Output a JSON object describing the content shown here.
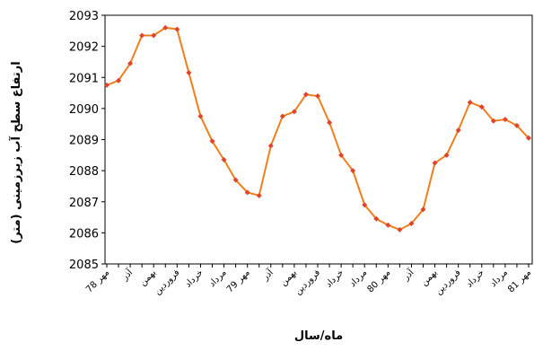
{
  "chart_data": {
    "type": "line",
    "x_label": "ماه/سال",
    "y_label": "ارتفاع سطح آب زیرزمینی (متر)",
    "categories": [
      "مهر 78",
      null,
      "آذر",
      null,
      "بهمن",
      null,
      "فروردین",
      null,
      "خرداد",
      null,
      "مرداد",
      null,
      "مهر 79",
      null,
      "آذر",
      null,
      "بهمن",
      null,
      "فروردین",
      null,
      "خرداد",
      null,
      "مرداد",
      null,
      "مهر 80",
      null,
      "آذر",
      null,
      "بهمن",
      null,
      "فروردین",
      null,
      "خرداد",
      null,
      "مرداد",
      null,
      "مهر 81"
    ],
    "series": [
      {
        "color": "#f07f1e",
        "marker_color": "#e0442a",
        "values": [
          2090.75,
          2090.9,
          2091.45,
          2092.35,
          2092.35,
          2092.6,
          2092.55,
          2091.15,
          2089.75,
          2088.95,
          2088.35,
          2087.7,
          2087.3,
          2087.2,
          2088.8,
          2089.75,
          2089.9,
          2090.45,
          2090.4,
          2089.55,
          2088.5,
          2088.0,
          2086.9,
          2086.45,
          2086.25,
          2086.1,
          2086.3,
          2086.75,
          2088.25,
          2088.5,
          2089.3,
          2090.2,
          2090.05,
          2089.6,
          2089.65,
          2089.45,
          2089.05
        ]
      }
    ],
    "ylim": [
      2085,
      2093
    ],
    "yticks": [
      2085,
      2086,
      2087,
      2088,
      2089,
      2090,
      2091,
      2092,
      2093
    ]
  }
}
